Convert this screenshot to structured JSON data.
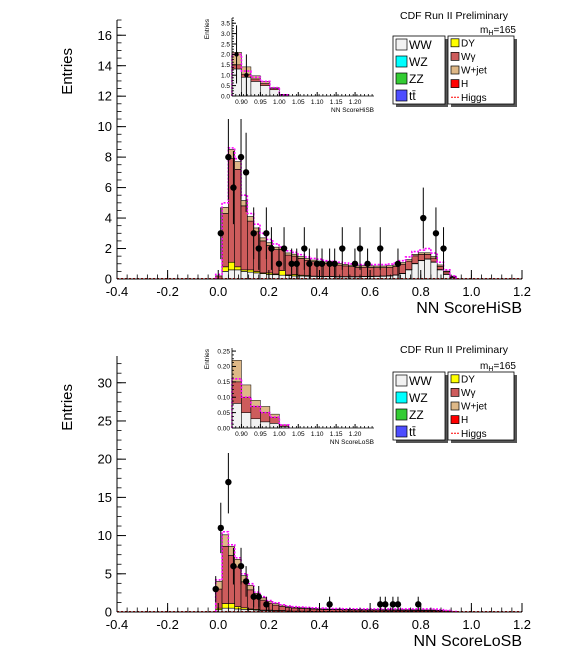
{
  "chart_data": [
    {
      "type": "bar",
      "header": "CDF Run II Preliminary",
      "xlabel": "NN ScoreHiSB",
      "ylabel": "Entries",
      "xlim": [
        -0.4,
        1.2
      ],
      "ylim": [
        0,
        17
      ],
      "xticks": [
        "-0.4",
        "-0.2",
        "0.0",
        "0.2",
        "0.4",
        "0.6",
        "0.8",
        "1.0",
        "1.2"
      ],
      "yticks": [
        "0",
        "2",
        "4",
        "6",
        "8",
        "10",
        "12",
        "14",
        "16"
      ],
      "mass_label": {
        "main": "m",
        "sub": "H",
        "value": "=165"
      },
      "legend_left": [
        "WW",
        "WZ",
        "ZZ",
        "tt̄"
      ],
      "legend_right": [
        "DY",
        "Wγ",
        "W+jet",
        "H",
        "Higgs"
      ],
      "bin_edges_start": -0.01,
      "bin_width": 0.025,
      "stack": [
        {
          "name": "WW",
          "color": "#f2f2f2",
          "values": [
            0,
            0.5,
            0.6,
            0.6,
            0.5,
            0.45,
            0.4,
            0.35,
            0.3,
            0.28,
            0.25,
            0.22,
            0.2,
            0.2,
            0.18,
            0.17,
            0.16,
            0.15,
            0.15,
            0.14,
            0.14,
            0.14,
            0.14,
            0.15,
            0.16,
            0.17,
            0.18,
            0.2,
            0.25,
            0.35,
            0.6,
            1.0,
            1.2,
            1.3,
            1.1,
            0.6,
            0.3,
            0.1
          ]
        },
        {
          "name": "DY",
          "color": "#ffff00",
          "values": [
            0,
            0.3,
            0.5,
            0.2,
            0.1,
            0.15,
            0.1,
            0.05,
            0.1,
            0.05,
            0.3,
            0.05,
            0.1,
            0.05,
            0.05,
            0.02,
            0.02,
            0.02,
            0.02,
            0.02,
            0.02,
            0.02,
            0.02,
            0.02,
            0.02,
            0.02,
            0.02,
            0.02,
            0.02,
            0.02,
            0.02,
            0.02,
            0.02,
            0.02,
            0.02,
            0.02,
            0.02,
            0.02
          ]
        },
        {
          "name": "Wγ",
          "color": "#cd5c5c",
          "values": [
            0.2,
            3.5,
            6.8,
            6.4,
            4.2,
            3.2,
            2.6,
            2.1,
            1.8,
            1.6,
            1.4,
            1.3,
            1.2,
            1.1,
            1.0,
            0.95,
            0.9,
            0.85,
            0.8,
            0.75,
            0.7,
            0.65,
            0.6,
            0.6,
            0.58,
            0.56,
            0.55,
            0.55,
            0.55,
            0.6,
            0.55,
            0.5,
            0.4,
            0.3,
            0.25,
            0.2,
            0.15,
            0.05
          ]
        },
        {
          "name": "W+jet",
          "color": "#deb887",
          "values": [
            0,
            0.4,
            0.6,
            0.5,
            0.35,
            0.3,
            0.25,
            0.2,
            0.18,
            0.16,
            0.15,
            0.14,
            0.13,
            0.12,
            0.11,
            0.1,
            0.1,
            0.1,
            0.1,
            0.1,
            0.1,
            0.1,
            0.1,
            0.1,
            0.1,
            0.1,
            0.1,
            0.1,
            0.1,
            0.1,
            0.1,
            0.1,
            0.1,
            0.1,
            0.1,
            0.1,
            0.05,
            0.02
          ]
        }
      ],
      "higgs_values": [
        0.3,
        5.0,
        8.6,
        7.9,
        5.5,
        4.3,
        3.6,
        3.0,
        2.6,
        2.3,
        2.1,
        1.85,
        1.75,
        1.6,
        1.45,
        1.35,
        1.3,
        1.2,
        1.15,
        1.1,
        1.05,
        1.0,
        0.95,
        0.95,
        0.95,
        0.95,
        0.95,
        0.98,
        1.05,
        1.2,
        1.45,
        1.8,
        1.9,
        2.0,
        1.7,
        1.1,
        0.6,
        0.2
      ],
      "data_points": [
        {
          "x": 0.01,
          "y": 3,
          "err": 1.7
        },
        {
          "x": 0.04,
          "y": 8,
          "err": 2.8
        },
        {
          "x": 0.06,
          "y": 6,
          "err": 2.4
        },
        {
          "x": 0.09,
          "y": 8,
          "err": 2.8
        },
        {
          "x": 0.11,
          "y": 7,
          "err": 2.6
        },
        {
          "x": 0.14,
          "y": 3,
          "err": 1.7
        },
        {
          "x": 0.16,
          "y": 2,
          "err": 1.4
        },
        {
          "x": 0.19,
          "y": 3,
          "err": 1.7
        },
        {
          "x": 0.21,
          "y": 2,
          "err": 1.4
        },
        {
          "x": 0.24,
          "y": 1,
          "err": 1.0
        },
        {
          "x": 0.26,
          "y": 2,
          "err": 1.4
        },
        {
          "x": 0.29,
          "y": 1,
          "err": 1.0
        },
        {
          "x": 0.31,
          "y": 1,
          "err": 1.0
        },
        {
          "x": 0.34,
          "y": 2,
          "err": 1.4
        },
        {
          "x": 0.36,
          "y": 1,
          "err": 1.0
        },
        {
          "x": 0.39,
          "y": 1,
          "err": 1.0
        },
        {
          "x": 0.41,
          "y": 1,
          "err": 1.0
        },
        {
          "x": 0.44,
          "y": 1,
          "err": 1.0
        },
        {
          "x": 0.46,
          "y": 1,
          "err": 1.0
        },
        {
          "x": 0.49,
          "y": 2,
          "err": 1.4
        },
        {
          "x": 0.54,
          "y": 1,
          "err": 1.0
        },
        {
          "x": 0.56,
          "y": 2,
          "err": 1.4
        },
        {
          "x": 0.59,
          "y": 1,
          "err": 1.0
        },
        {
          "x": 0.64,
          "y": 2,
          "err": 1.4
        },
        {
          "x": 0.71,
          "y": 1,
          "err": 1.0
        },
        {
          "x": 0.81,
          "y": 4,
          "err": 2.0
        },
        {
          "x": 0.86,
          "y": 3,
          "err": 1.7
        },
        {
          "x": 0.89,
          "y": 2,
          "err": 1.4
        }
      ],
      "inset": {
        "xlabel": "NN ScoreHiSB",
        "ylabel": "Entries",
        "xlim": [
          0.875,
          1.25
        ],
        "ylim": [
          0,
          3.75
        ],
        "xticks": [
          "0.90",
          "0.95",
          "1.00",
          "1.05",
          "1.10",
          "1.15",
          "1.20"
        ],
        "yticks": [
          "0.0",
          "0.5",
          "1.0",
          "1.5",
          "2.0",
          "2.5",
          "3.0",
          "3.5"
        ],
        "bin_edges_start": 0.875,
        "bin_width": 0.025,
        "stack": [
          {
            "name": "WW",
            "color": "#f2f2f2",
            "values": [
              1.3,
              0.9,
              0.7,
              0.5,
              0.3,
              0.05
            ]
          },
          {
            "name": "Wγ",
            "color": "#cd5c5c",
            "values": [
              0.2,
              0.15,
              0.12,
              0.1,
              0.05,
              0.02
            ]
          },
          {
            "name": "W+jet",
            "color": "#deb887",
            "values": [
              0.6,
              0.35,
              0.15,
              0.1,
              0.05,
              0.01
            ]
          }
        ],
        "higgs_values": [
          2.0,
          1.2,
          0.9,
          0.7,
          0.4,
          0.05
        ],
        "data_points": [
          {
            "x": 0.887,
            "y": 2,
            "err": 1.4
          },
          {
            "x": 0.913,
            "y": 1,
            "err": 1.0
          }
        ]
      }
    },
    {
      "type": "bar",
      "header": "CDF Run II Preliminary",
      "xlabel": "NN ScoreLoSB",
      "ylabel": "Entries",
      "xlim": [
        -0.4,
        1.2
      ],
      "ylim": [
        0,
        33.5
      ],
      "xticks": [
        "-0.4",
        "-0.2",
        "0.0",
        "0.2",
        "0.4",
        "0.6",
        "0.8",
        "1.0",
        "1.2"
      ],
      "yticks": [
        "0",
        "5",
        "10",
        "15",
        "20",
        "25",
        "30"
      ],
      "mass_label": {
        "main": "m",
        "sub": "H",
        "value": "=165"
      },
      "legend_left": [
        "WW",
        "WZ",
        "ZZ",
        "tt̄"
      ],
      "legend_right": [
        "DY",
        "Wγ",
        "W+jet",
        "H",
        "Higgs"
      ],
      "bin_edges_start": -0.01,
      "bin_width": 0.025,
      "stack": [
        {
          "name": "WW",
          "color": "#f2f2f2",
          "values": [
            0.3,
            0.5,
            0.5,
            0.4,
            0.35,
            0.3,
            0.25,
            0.2,
            0.2,
            0.15,
            0.15,
            0.12,
            0.1,
            0.1,
            0.1,
            0.08,
            0.08,
            0.08,
            0.08,
            0.08,
            0.08,
            0.08,
            0.08,
            0.08,
            0.08,
            0.08,
            0.08,
            0.08,
            0.08,
            0.08,
            0.08,
            0.08,
            0.1,
            0.1,
            0.1,
            0.08,
            0.05,
            0.02
          ]
        },
        {
          "name": "DY",
          "color": "#ffff00",
          "values": [
            0.2,
            0.6,
            0.6,
            0.3,
            0.2,
            0.1,
            0.1,
            0.05,
            0.05,
            0.05,
            0.05,
            0.02,
            0.02,
            0.02,
            0.02,
            0.02,
            0.02,
            0.02,
            0.02,
            0.02,
            0.02,
            0.02,
            0.02,
            0.02,
            0.02,
            0.02,
            0.02,
            0.02,
            0.02,
            0.02,
            0.02,
            0.02,
            0.02,
            0.02,
            0.02,
            0.02,
            0.02,
            0.02
          ]
        },
        {
          "name": "Wγ",
          "color": "#cd5c5c",
          "values": [
            2.5,
            7.5,
            6.3,
            5.2,
            3.4,
            2.5,
            1.7,
            1.3,
            0.9,
            0.7,
            0.55,
            0.45,
            0.4,
            0.35,
            0.3,
            0.28,
            0.25,
            0.22,
            0.2,
            0.2,
            0.18,
            0.17,
            0.16,
            0.15,
            0.14,
            0.14,
            0.13,
            0.13,
            0.12,
            0.12,
            0.12,
            0.11,
            0.1,
            0.1,
            0.1,
            0.08,
            0.05,
            0.02
          ]
        },
        {
          "name": "W+jet",
          "color": "#deb887",
          "values": [
            1.0,
            1.5,
            1.2,
            1.0,
            0.8,
            0.6,
            0.4,
            0.3,
            0.25,
            0.2,
            0.15,
            0.12,
            0.1,
            0.1,
            0.1,
            0.08,
            0.08,
            0.08,
            0.08,
            0.08,
            0.08,
            0.08,
            0.08,
            0.08,
            0.08,
            0.08,
            0.08,
            0.08,
            0.08,
            0.08,
            0.08,
            0.08,
            0.05,
            0.05,
            0.05,
            0.05,
            0.03,
            0.01
          ]
        }
      ],
      "higgs_values": [
        4.2,
        10.5,
        8.8,
        7.1,
        5.0,
        3.7,
        2.6,
        2.0,
        1.5,
        1.2,
        0.95,
        0.8,
        0.7,
        0.65,
        0.6,
        0.55,
        0.5,
        0.48,
        0.45,
        0.45,
        0.42,
        0.42,
        0.4,
        0.4,
        0.4,
        0.4,
        0.4,
        0.4,
        0.4,
        0.4,
        0.4,
        0.4,
        0.4,
        0.4,
        0.38,
        0.3,
        0.2,
        0.06
      ],
      "data_points": [
        {
          "x": -0.01,
          "y": 3,
          "err": 1.7
        },
        {
          "x": 0.01,
          "y": 11,
          "err": 3.3
        },
        {
          "x": 0.04,
          "y": 17,
          "err": 4.1
        },
        {
          "x": 0.06,
          "y": 6,
          "err": 2.4
        },
        {
          "x": 0.09,
          "y": 6,
          "err": 2.4
        },
        {
          "x": 0.11,
          "y": 4,
          "err": 2.0
        },
        {
          "x": 0.14,
          "y": 2,
          "err": 1.4
        },
        {
          "x": 0.16,
          "y": 2,
          "err": 1.4
        },
        {
          "x": 0.19,
          "y": 1,
          "err": 1.0
        },
        {
          "x": 0.44,
          "y": 1,
          "err": 1.0
        },
        {
          "x": 0.64,
          "y": 1,
          "err": 1.0
        },
        {
          "x": 0.66,
          "y": 1,
          "err": 1.0
        },
        {
          "x": 0.69,
          "y": 1,
          "err": 1.0
        },
        {
          "x": 0.71,
          "y": 1,
          "err": 1.0
        },
        {
          "x": 0.79,
          "y": 1,
          "err": 1.0
        }
      ],
      "inset": {
        "xlabel": "NN ScoreLoSB",
        "ylabel": "Entries",
        "xlim": [
          0.875,
          1.25
        ],
        "ylim": [
          0,
          0.26
        ],
        "xticks": [
          "0.90",
          "0.95",
          "1.00",
          "1.05",
          "1.10",
          "1.15",
          "1.20"
        ],
        "yticks": [
          "0.00",
          "0.05",
          "0.10",
          "0.15",
          "0.20",
          "0.25"
        ],
        "bin_edges_start": 0.875,
        "bin_width": 0.025,
        "stack": [
          {
            "name": "WW",
            "color": "#f2f2f2",
            "values": [
              0.08,
              0.05,
              0.03,
              0.02,
              0.015,
              0.005
            ]
          },
          {
            "name": "Wγ",
            "color": "#cd5c5c",
            "values": [
              0.07,
              0.05,
              0.04,
              0.03,
              0.02,
              0.005
            ]
          },
          {
            "name": "W+jet",
            "color": "#deb887",
            "values": [
              0.07,
              0.04,
              0.02,
              0.02,
              0.01,
              0.0
            ]
          }
        ],
        "higgs_values": [
          0.16,
          0.1,
          0.07,
          0.05,
          0.035,
          0.01
        ],
        "data_points": []
      }
    }
  ]
}
